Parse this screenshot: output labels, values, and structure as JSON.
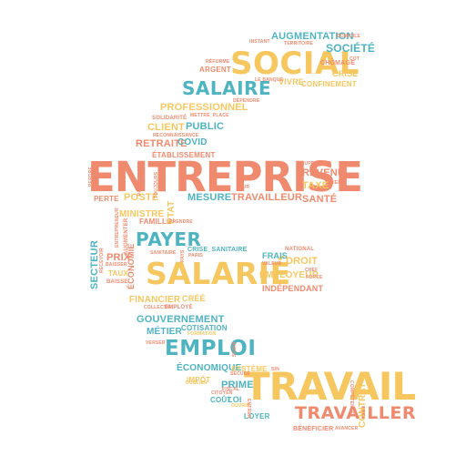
{
  "colors": {
    "orange": "#F08A6E",
    "yellow": "#F6C75E",
    "blue": "#4EB4C2"
  },
  "words": {
    "entreprise": "ENTREPRISE",
    "travail": "TRAVAIL",
    "social": "SOCIAL",
    "salarie": "SALARIÉ",
    "salaire": "SALAIRE",
    "payer": "PAYER",
    "emploi": "EMPLOI",
    "travailler": "TRAVAILLER",
    "augmentation": "AUGMENTATION",
    "societe": "SOCIÉTÉ",
    "chomage": "CHÔMAGE",
    "crise": "CRISE",
    "confinement": "CONFINEMENT",
    "vivre": "VIVRE",
    "argent": "ARGENT",
    "professionnel": "PROFESSIONNEL",
    "solidarite": "SOLIDARITÉ",
    "client": "CLIENT",
    "public": "PUBLIC",
    "retraite": "RETRAITE",
    "covid": "COVID",
    "etablissement": "ÉTABLISSEMENT",
    "revenu": "REVENU",
    "taxe": "TAXE",
    "sante": "SANTÉ",
    "perte": "PERTE",
    "poste": "POSTE",
    "mesure": "MESURE",
    "travailleur": "TRAVAILLEUR",
    "ministre": "MINISTRE",
    "famille": "FAMILLE",
    "etat": "ÉTAT",
    "crise_sanitaire": "CRISE_SANITAIRE",
    "frais": "FRAIS",
    "droit": "DROIT",
    "employeur": "EMPLOYEUR",
    "independant": "INDÉPENDANT",
    "prix": "PRIX",
    "taux": "TAUX",
    "secteur": "SECTEUR",
    "economie": "ÉCONOMIE",
    "financier": "FINANCIER",
    "cree": "CRÉÉ",
    "gouvernement": "GOUVERNEMENT",
    "cotisation": "COTISATION",
    "metier": "MÉTIER",
    "economique": "ÉCONOMIQUE",
    "systeme": "SYSTÈME",
    "impot": "IMPÔT",
    "prime": "PRIME",
    "cout": "COÛT",
    "loi": "LOI",
    "loyer": "LOYER",
    "contrat": "CONTRAT",
    "beneficier": "BÉNÉFICIER",
    "national": "NATIONAL",
    "employe": "EMPLOYÉ",
    "sanitaire": "SANITAIRE",
    "pays": "PAYS",
    "entrepreneur": "ENTREPRENEUR",
    "augmenter": "AUGMENTER",
    "recevoir": "RECEVOIR",
    "collectif": "COLLECTIF",
    "formation": "FORMATION",
    "verser": "VERSER",
    "baisser": "BAISSER",
    "baisse": "BAISSE",
    "fiscal": "FISCAL",
    "le_banque": "LE BANQUE",
    "domicile": "DOMICILE",
    "territoire": "TERRITOIRE",
    "instant": "INSTANT",
    "cot": "COT",
    "reforme": "RÉFORME",
    "mettre_place": "METTRE_PLACE",
    "reconnaissance": "RECONNAISSANCE",
    "dependre": "DÉPENDRE",
    "supprimer": "SUPPRIMER",
    "lien": "LIEN",
    "prendre": "PRENDRE",
    "progresser": "PROGRESSER",
    "perdre": "PERDRE",
    "chef": "CHEF",
    "force": "FORCE",
    "eur": "EUR",
    "toujours": "TOUJOURS",
    "valeur": "VALEUR",
    "subir": "SUBIR",
    "secure": "SÉCURE",
    "ouvrir": "OUVRIR",
    "citoyen": "CITOYEN",
    "competence": "COMPÉTENCE",
    "entrer": "ENTRER",
    "avancer": "AVANCER",
    "sin": "SIN",
    "oublier": "OUBLIER",
    "paris": "PARIS"
  }
}
